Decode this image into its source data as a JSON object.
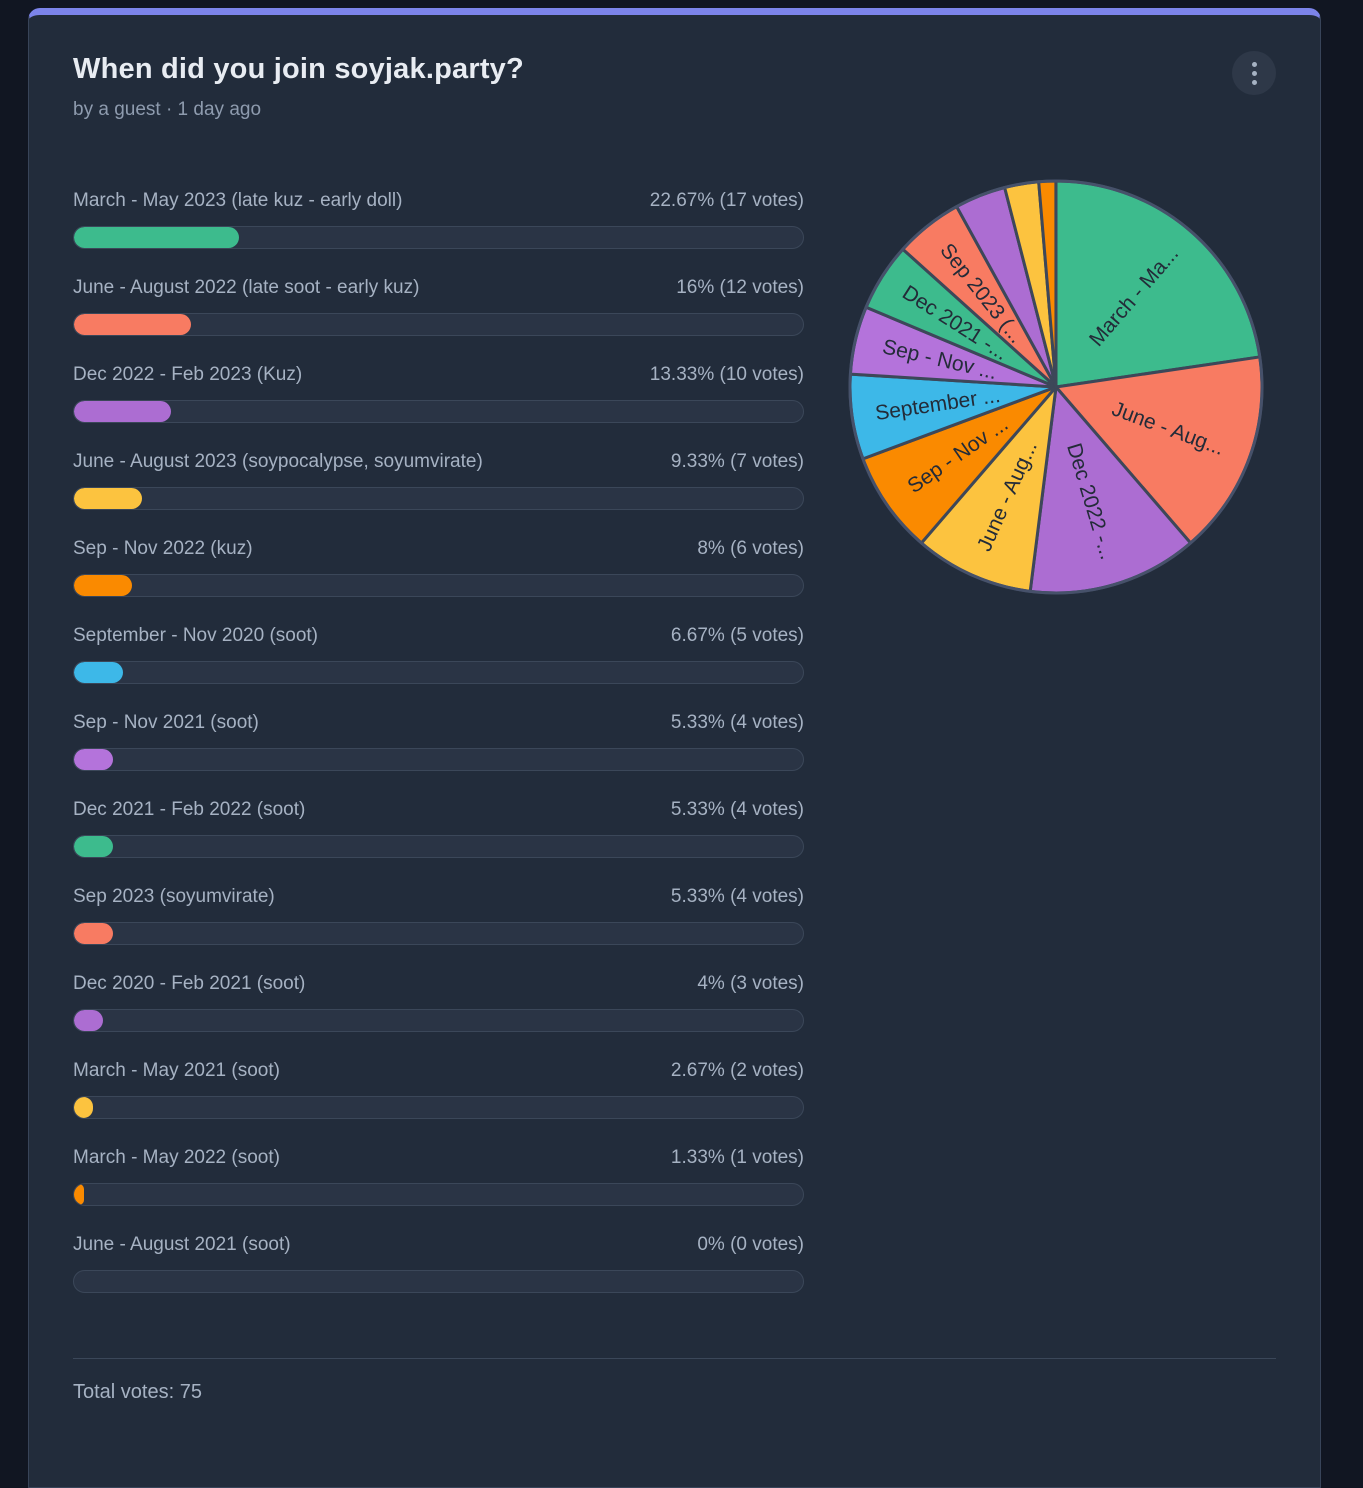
{
  "poll": {
    "title": "When did you join soyjak.party?",
    "byline": "by a guest · 1 day ago",
    "total_votes_label": "Total votes: 75",
    "menu_icon": "kebab-menu-icon"
  },
  "colors": {
    "page_bg": "#111622",
    "card_bg": "#222C3B",
    "accent_top_bar": "#7C84EA",
    "title_text": "#E8ECF2",
    "muted_text": "#A6B2C3",
    "byline_text": "#8E9BAE",
    "track_bg": "#2A3445",
    "track_border": "#3B4759",
    "pie_stroke": "#3D4759",
    "pie_label_text": "#232B38"
  },
  "chart_data": {
    "type": "pie",
    "title": "When did you join soyjak.party?",
    "total_votes": 75,
    "legend_position": "none",
    "start_angle_deg": 0,
    "direction": "clockwise",
    "categories": [
      "March - May 2023 (late kuz - early doll)",
      "June - August 2022 (late soot - early kuz)",
      "Dec 2022 - Feb 2023 (Kuz)",
      "June - August 2023 (soypocalypse, soyumvirate)",
      "Sep - Nov 2022 (kuz)",
      "September - Nov 2020 (soot)",
      "Sep - Nov 2021 (soot)",
      "Dec 2021 - Feb 2022 (soot)",
      "Sep 2023 (soyumvirate)",
      "Dec 2020 - Feb 2021 (soot)",
      "March - May 2021 (soot)",
      "March - May 2022 (soot)",
      "June - August 2021 (soot)"
    ],
    "values": [
      22.67,
      16,
      13.33,
      9.33,
      8,
      6.67,
      5.33,
      5.33,
      5.33,
      4,
      2.67,
      1.33,
      0
    ],
    "votes": [
      17,
      12,
      10,
      7,
      6,
      5,
      4,
      4,
      4,
      3,
      2,
      1,
      0
    ],
    "stats_labels": [
      "22.67% (17 votes)",
      "16% (12 votes)",
      "13.33% (10 votes)",
      "9.33% (7 votes)",
      "8% (6 votes)",
      "6.67% (5 votes)",
      "5.33% (4 votes)",
      "5.33% (4 votes)",
      "5.33% (4 votes)",
      "4% (3 votes)",
      "2.67% (2 votes)",
      "1.33% (1 votes)",
      "0% (0 votes)"
    ],
    "colors": [
      "#3DBB8D",
      "#F87B62",
      "#AC6DD2",
      "#FCC33F",
      "#FA8A00",
      "#3DB8E8",
      "#B473DB",
      "#3DBB8D",
      "#F87B62",
      "#AC6DD2",
      "#FCC33F",
      "#FA8A00",
      "#3DB8E8"
    ],
    "pie_labels": [
      "March - Ma...",
      "June - Aug...",
      "Dec 2022 -...",
      "June - Aug...",
      "Sep - Nov ...",
      "September ...",
      "Sep - Nov ...",
      "Dec 2021 -...",
      "Sep 2023 (...",
      null,
      null,
      null,
      null
    ]
  }
}
